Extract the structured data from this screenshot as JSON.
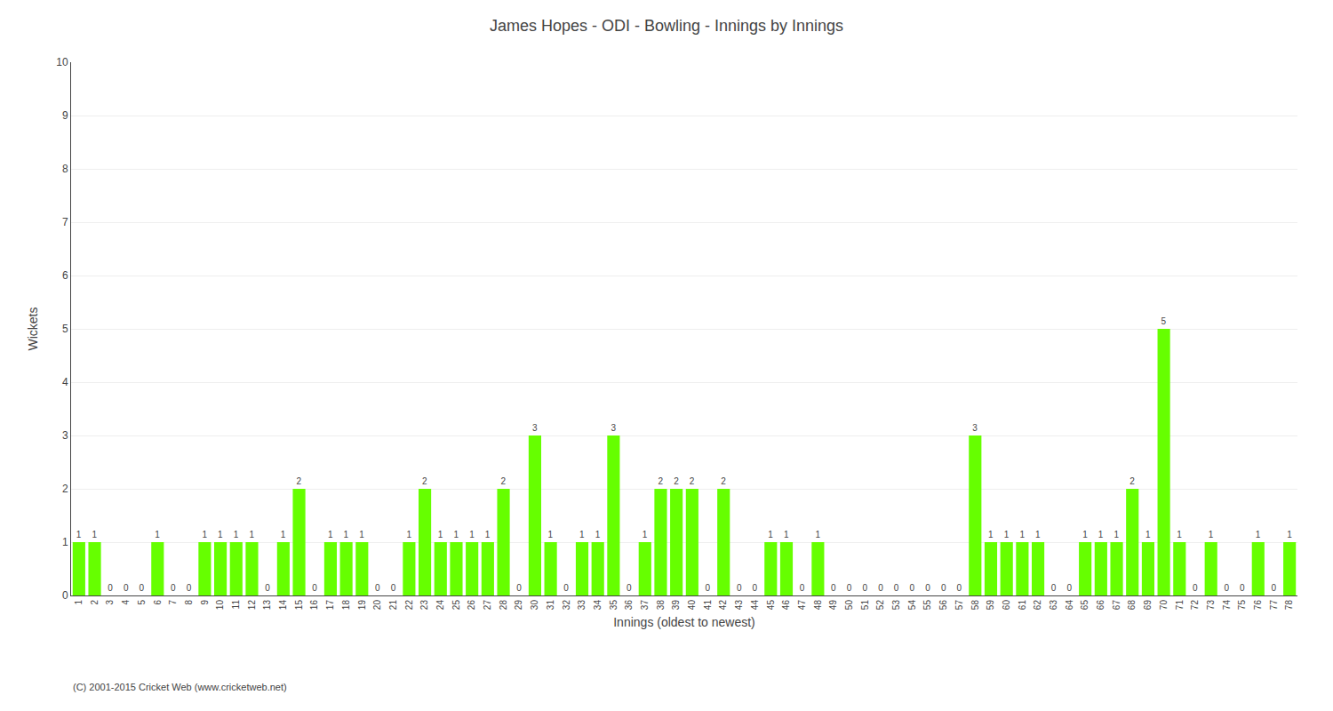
{
  "chart_data": {
    "type": "bar",
    "title": "James Hopes - ODI - Bowling - Innings by Innings",
    "xlabel": "Innings (oldest to newest)",
    "ylabel": "Wickets",
    "annotations": [
      "(C) 2001-2015 Cricket Web (www.cricketweb.net)"
    ],
    "categories": [
      "1",
      "2",
      "3",
      "4",
      "5",
      "6",
      "7",
      "8",
      "9",
      "10",
      "11",
      "12",
      "13",
      "14",
      "15",
      "16",
      "17",
      "18",
      "19",
      "20",
      "21",
      "22",
      "23",
      "24",
      "25",
      "26",
      "27",
      "28",
      "29",
      "30",
      "31",
      "32",
      "33",
      "34",
      "35",
      "36",
      "37",
      "38",
      "39",
      "40",
      "41",
      "42",
      "43",
      "44",
      "45",
      "46",
      "47",
      "48",
      "49",
      "50",
      "51",
      "52",
      "53",
      "54",
      "55",
      "56",
      "57",
      "58",
      "59",
      "60",
      "61",
      "62",
      "63",
      "64",
      "65",
      "66",
      "67",
      "68",
      "69",
      "70",
      "71",
      "72",
      "73",
      "74",
      "75",
      "76",
      "77",
      "78"
    ],
    "values": [
      1,
      1,
      0,
      0,
      0,
      1,
      0,
      0,
      1,
      1,
      1,
      1,
      0,
      1,
      2,
      0,
      1,
      1,
      1,
      0,
      0,
      1,
      2,
      1,
      1,
      1,
      1,
      2,
      0,
      3,
      1,
      0,
      1,
      1,
      3,
      0,
      1,
      2,
      2,
      2,
      0,
      2,
      0,
      0,
      1,
      1,
      0,
      1,
      0,
      0,
      0,
      0,
      0,
      0,
      0,
      0,
      0,
      3,
      1,
      1,
      1,
      1,
      0,
      0,
      1,
      1,
      1,
      2,
      1,
      5,
      1,
      0,
      1,
      0,
      0,
      1,
      0,
      1
    ],
    "color": "#66ff00",
    "ylim": [
      0,
      10
    ],
    "yticks": [
      0,
      1,
      2,
      3,
      4,
      5,
      6,
      7,
      8,
      9,
      10
    ],
    "grid": true,
    "data_labels": true
  }
}
